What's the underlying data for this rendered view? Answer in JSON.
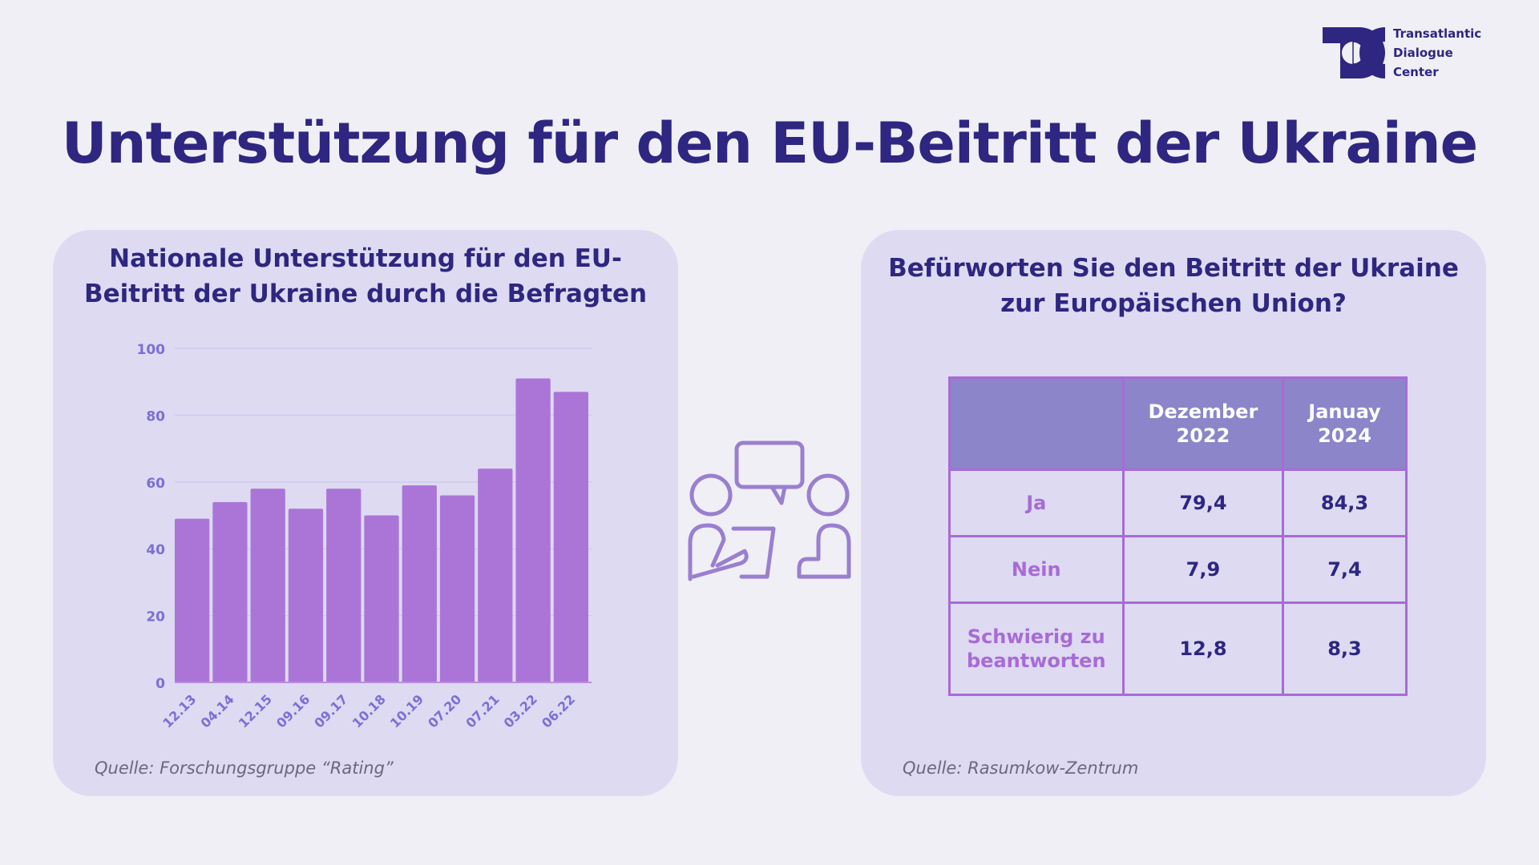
{
  "title": "Unterstützung für den EU-Beitritt der Ukraine",
  "logo": {
    "lines": [
      "Transatlantic",
      "Dialogue",
      "Center"
    ]
  },
  "left_card": {
    "title": "Nationale Unterstützung für den EU-Beitritt der Ukraine durch die Befragten",
    "source": "Quelle: Forschungsgruppe “Rating”"
  },
  "right_card": {
    "title": "Befürworten Sie den Beitritt der Ukraine zur Europäischen Union?",
    "source": "Quelle: Rasumkow-Zentrum"
  },
  "chart_data": {
    "type": "bar",
    "categories": [
      "12.13",
      "04.14",
      "12.15",
      "09.16",
      "09.17",
      "10.18",
      "10.19",
      "07.20",
      "07.21",
      "03.22",
      "06.22"
    ],
    "values": [
      49,
      54,
      58,
      52,
      58,
      50,
      59,
      56,
      64,
      91,
      87
    ],
    "yticks": [
      0,
      20,
      40,
      60,
      80,
      100
    ],
    "ylim": [
      0,
      100
    ],
    "grid": true,
    "bar_color": "#ab75d8"
  },
  "table": {
    "headers": [
      "",
      "Dezember 2022",
      "Januay 2024"
    ],
    "rows": [
      {
        "label": "Ja",
        "values": [
          "79,4",
          "84,3"
        ]
      },
      {
        "label": "Nein",
        "values": [
          "7,9",
          "7,4"
        ]
      },
      {
        "label": "Schwierig zu beantworten",
        "values": [
          "12,8",
          "8,3"
        ]
      }
    ]
  },
  "icon": "people-conversation-icon",
  "colors": {
    "primary": "#2e2680",
    "accent": "#ab75d8",
    "card": "#dddaf2",
    "header": "#8c85c9"
  }
}
